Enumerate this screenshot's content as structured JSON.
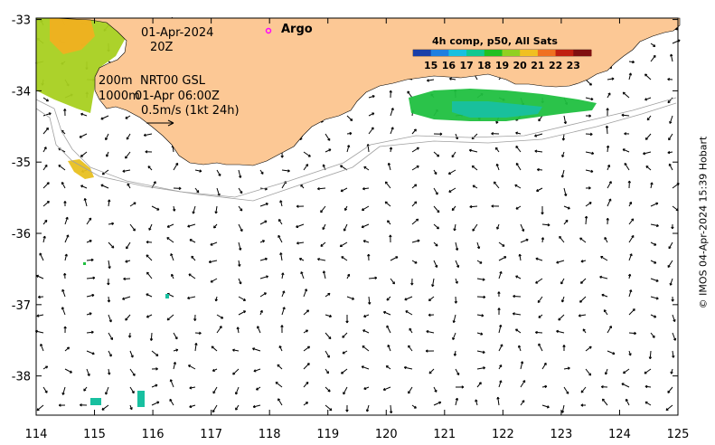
{
  "map": {
    "date": "01-Apr-2024",
    "hour": "20Z",
    "contour_shallow": "200m",
    "contour_deep": "1000m",
    "product": "NRT00 GSL",
    "product_time": "01-Apr 06:00Z",
    "scale_text": "0.5m/s (1kt 24h)",
    "argo_label": "Argo",
    "credit": "© IMOS 04-Apr-2024 15:39 Hobart",
    "x_ticks": [
      "114",
      "115",
      "116",
      "117",
      "118",
      "119",
      "120",
      "121",
      "122",
      "123",
      "124",
      "125"
    ],
    "y_ticks": [
      "-33",
      "-34",
      "-35",
      "-36",
      "-37",
      "-38"
    ],
    "lon_range": [
      114,
      125
    ],
    "lat_range": [
      -38.55,
      -32.98
    ],
    "colors": {
      "land": "#fcc895",
      "argo": "#ff00ff",
      "contour": "#a0a0a0"
    }
  },
  "colorbar": {
    "title": "4h comp, p50, All Sats",
    "labels": [
      "15",
      "16",
      "17",
      "18",
      "19",
      "20",
      "21",
      "22",
      "23"
    ],
    "colors": [
      "#1a3fa8",
      "#1f7fe0",
      "#18c0e0",
      "#10c890",
      "#20c020",
      "#90d020",
      "#f0c020",
      "#f07020",
      "#c02010",
      "#801010"
    ]
  }
}
